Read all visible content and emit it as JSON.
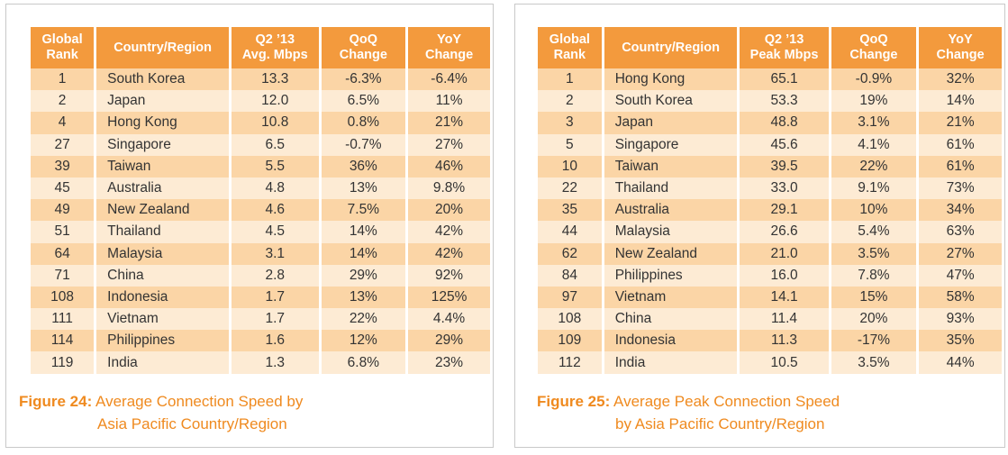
{
  "figure24": {
    "headers": {
      "rank": [
        "Global",
        "Rank"
      ],
      "country": "Country/Region",
      "metric": [
        "Q2 ’13",
        "Avg. Mbps"
      ],
      "qoq": [
        "QoQ",
        "Change"
      ],
      "yoy": [
        "YoY",
        "Change"
      ]
    },
    "rows": [
      {
        "rank": "1",
        "country": "South Korea",
        "value": "13.3",
        "qoq": "-6.3%",
        "yoy": "-6.4%"
      },
      {
        "rank": "2",
        "country": "Japan",
        "value": "12.0",
        "qoq": "6.5%",
        "yoy": "11%"
      },
      {
        "rank": "4",
        "country": "Hong Kong",
        "value": "10.8",
        "qoq": "0.8%",
        "yoy": "21%"
      },
      {
        "rank": "27",
        "country": "Singapore",
        "value": "6.5",
        "qoq": "-0.7%",
        "yoy": "27%"
      },
      {
        "rank": "39",
        "country": "Taiwan",
        "value": "5.5",
        "qoq": "36%",
        "yoy": "46%"
      },
      {
        "rank": "45",
        "country": "Australia",
        "value": "4.8",
        "qoq": "13%",
        "yoy": "9.8%"
      },
      {
        "rank": "49",
        "country": "New Zealand",
        "value": "4.6",
        "qoq": "7.5%",
        "yoy": "20%"
      },
      {
        "rank": "51",
        "country": "Thailand",
        "value": "4.5",
        "qoq": "14%",
        "yoy": "42%"
      },
      {
        "rank": "64",
        "country": "Malaysia",
        "value": "3.1",
        "qoq": "14%",
        "yoy": "42%"
      },
      {
        "rank": "71",
        "country": "China",
        "value": "2.8",
        "qoq": "29%",
        "yoy": "92%"
      },
      {
        "rank": "108",
        "country": "Indonesia",
        "value": "1.7",
        "qoq": "13%",
        "yoy": "125%"
      },
      {
        "rank": "111",
        "country": "Vietnam",
        "value": "1.7",
        "qoq": "22%",
        "yoy": "4.4%"
      },
      {
        "rank": "114",
        "country": "Philippines",
        "value": "1.6",
        "qoq": "12%",
        "yoy": "29%"
      },
      {
        "rank": "119",
        "country": "India",
        "value": "1.3",
        "qoq": "6.8%",
        "yoy": "23%"
      }
    ],
    "caption": {
      "label": "Figure 24:",
      "line1": "Average Connection Speed by",
      "line2": "Asia Pacific Country/Region"
    }
  },
  "figure25": {
    "headers": {
      "rank": [
        "Global",
        "Rank"
      ],
      "country": "Country/Region",
      "metric": [
        "Q2 ’13",
        "Peak Mbps"
      ],
      "qoq": [
        "QoQ",
        "Change"
      ],
      "yoy": [
        "YoY",
        "Change"
      ]
    },
    "rows": [
      {
        "rank": "1",
        "country": "Hong Kong",
        "value": "65.1",
        "qoq": "-0.9%",
        "yoy": "32%"
      },
      {
        "rank": "2",
        "country": "South Korea",
        "value": "53.3",
        "qoq": "19%",
        "yoy": "14%"
      },
      {
        "rank": "3",
        "country": "Japan",
        "value": "48.8",
        "qoq": "3.1%",
        "yoy": "21%"
      },
      {
        "rank": "5",
        "country": "Singapore",
        "value": "45.6",
        "qoq": "4.1%",
        "yoy": "61%"
      },
      {
        "rank": "10",
        "country": "Taiwan",
        "value": "39.5",
        "qoq": "22%",
        "yoy": "61%"
      },
      {
        "rank": "22",
        "country": "Thailand",
        "value": "33.0",
        "qoq": "9.1%",
        "yoy": "73%"
      },
      {
        "rank": "35",
        "country": "Australia",
        "value": "29.1",
        "qoq": "10%",
        "yoy": "34%"
      },
      {
        "rank": "44",
        "country": "Malaysia",
        "value": "26.6",
        "qoq": "5.4%",
        "yoy": "63%"
      },
      {
        "rank": "62",
        "country": "New Zealand",
        "value": "21.0",
        "qoq": "3.5%",
        "yoy": "27%"
      },
      {
        "rank": "84",
        "country": "Philippines",
        "value": "16.0",
        "qoq": "7.8%",
        "yoy": "47%"
      },
      {
        "rank": "97",
        "country": "Vietnam",
        "value": "14.1",
        "qoq": "15%",
        "yoy": "58%"
      },
      {
        "rank": "108",
        "country": "China",
        "value": "11.4",
        "qoq": "20%",
        "yoy": "93%"
      },
      {
        "rank": "109",
        "country": "Indonesia",
        "value": "11.3",
        "qoq": "-17%",
        "yoy": "35%"
      },
      {
        "rank": "112",
        "country": "India",
        "value": "10.5",
        "qoq": "3.5%",
        "yoy": "44%"
      }
    ],
    "caption": {
      "label": "Figure 25:",
      "line1": "Average Peak Connection Speed",
      "line2": "by Asia Pacific Country/Region"
    }
  },
  "colors": {
    "header_orange": "#f39a3d",
    "row_dark": "#fbd5a6",
    "row_light": "#fdebd4",
    "caption_orange": "#ef8a1f"
  }
}
